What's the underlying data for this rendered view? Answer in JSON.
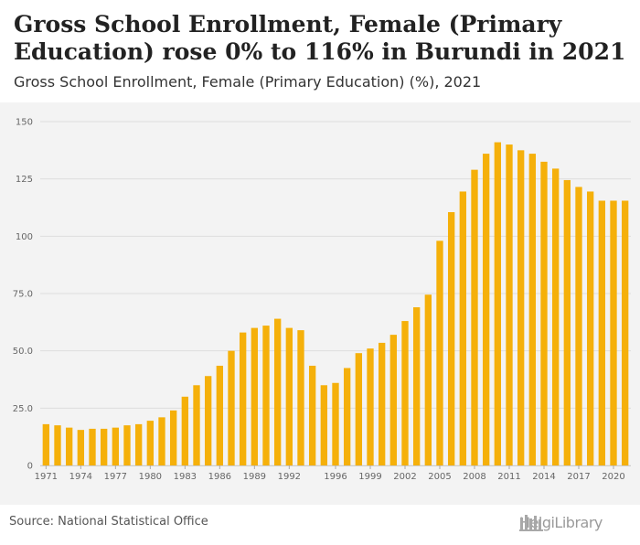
{
  "header": {
    "title": "Gross School Enrollment, Female (Primary Education) rose 0% to 116% in Burundi in 2021",
    "subtitle": "Gross School Enrollment, Female (Primary Education) (%), 2021"
  },
  "footer": {
    "source": "Source: National Statistical Office",
    "logo_text": "HelgiLibrary"
  },
  "colors": {
    "bar": "#f5b00a",
    "grid": "#dddddd",
    "plot_bg": "#f3f3f3"
  },
  "chart_data": {
    "type": "bar",
    "title": "Gross School Enrollment, Female (Primary Education) (%), 2021",
    "xlabel": "",
    "ylabel": "",
    "ylim": [
      0,
      150
    ],
    "yticks": [
      {
        "value": 0,
        "label": "0"
      },
      {
        "value": 25,
        "label": "25.0"
      },
      {
        "value": 50,
        "label": "50.0"
      },
      {
        "value": 75,
        "label": "75.0"
      },
      {
        "value": 100,
        "label": "100"
      },
      {
        "value": 125,
        "label": "125"
      },
      {
        "value": 150,
        "label": "150"
      }
    ],
    "xtick_labels": [
      "1971",
      "1974",
      "1977",
      "1980",
      "1983",
      "1986",
      "1989",
      "1992",
      "1996",
      "1999",
      "2002",
      "2005",
      "2008",
      "2011",
      "2014",
      "2017",
      "2020"
    ],
    "categories": [
      "1971",
      "1972",
      "1973",
      "1974",
      "1975",
      "1976",
      "1977",
      "1978",
      "1979",
      "1980",
      "1981",
      "1982",
      "1983",
      "1984",
      "1985",
      "1986",
      "1987",
      "1988",
      "1989",
      "1990",
      "1991",
      "1992",
      "1993",
      "1994",
      "1995",
      "1996",
      "1997",
      "1998",
      "1999",
      "2000",
      "2001",
      "2002",
      "2003",
      "2004",
      "2005",
      "2006",
      "2007",
      "2008",
      "2009",
      "2010",
      "2011",
      "2012",
      "2013",
      "2014",
      "2015",
      "2016",
      "2017",
      "2018",
      "2019",
      "2020",
      "2021"
    ],
    "values": [
      18,
      17.5,
      16.5,
      15.5,
      16,
      16,
      16.5,
      17.5,
      18,
      19.5,
      21,
      24,
      30,
      35,
      39,
      43.5,
      50,
      58,
      60,
      61,
      64,
      60,
      59,
      43.5,
      35,
      36,
      42.5,
      49,
      51,
      53.5,
      57,
      63,
      69,
      74.5,
      98,
      110.5,
      119.5,
      129,
      136,
      141,
      140,
      137.5,
      136,
      132.5,
      129.5,
      124.5,
      121.5,
      119.5,
      115.5,
      115.5,
      115.5
    ]
  }
}
